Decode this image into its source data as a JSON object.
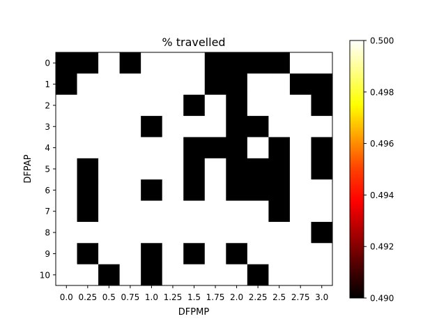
{
  "chart_data": {
    "type": "heatmap",
    "title": "% travelled",
    "xlabel": "DFPMP",
    "ylabel": "DFPAP",
    "x_categories": [
      "0.0",
      "0.25",
      "0.5",
      "0.75",
      "1.0",
      "1.25",
      "1.5",
      "1.75",
      "2.0",
      "2.25",
      "2.5",
      "2.75",
      "3.0"
    ],
    "y_categories": [
      "0",
      "1",
      "2",
      "3",
      "4",
      "5",
      "6",
      "7",
      "8",
      "9",
      "10"
    ],
    "values": [
      [
        0.49,
        0.49,
        0.5,
        0.49,
        0.5,
        0.5,
        0.5,
        0.49,
        0.49,
        0.49,
        0.49,
        0.5,
        0.5
      ],
      [
        0.49,
        0.5,
        0.5,
        0.5,
        0.5,
        0.5,
        0.5,
        0.49,
        0.49,
        0.5,
        0.5,
        0.49,
        0.49
      ],
      [
        0.5,
        0.5,
        0.5,
        0.5,
        0.5,
        0.5,
        0.49,
        0.5,
        0.49,
        0.5,
        0.5,
        0.5,
        0.49
      ],
      [
        0.5,
        0.5,
        0.5,
        0.5,
        0.49,
        0.5,
        0.5,
        0.5,
        0.49,
        0.49,
        0.5,
        0.5,
        0.5
      ],
      [
        0.5,
        0.5,
        0.5,
        0.5,
        0.5,
        0.5,
        0.49,
        0.49,
        0.49,
        0.5,
        0.49,
        0.5,
        0.49
      ],
      [
        0.5,
        0.49,
        0.5,
        0.5,
        0.5,
        0.5,
        0.49,
        0.5,
        0.49,
        0.49,
        0.49,
        0.5,
        0.49
      ],
      [
        0.5,
        0.49,
        0.5,
        0.5,
        0.49,
        0.5,
        0.49,
        0.5,
        0.49,
        0.49,
        0.49,
        0.5,
        0.5
      ],
      [
        0.5,
        0.49,
        0.5,
        0.5,
        0.5,
        0.5,
        0.5,
        0.5,
        0.5,
        0.5,
        0.49,
        0.5,
        0.5
      ],
      [
        0.5,
        0.5,
        0.5,
        0.5,
        0.5,
        0.5,
        0.5,
        0.5,
        0.5,
        0.5,
        0.5,
        0.5,
        0.49
      ],
      [
        0.5,
        0.49,
        0.5,
        0.5,
        0.49,
        0.5,
        0.49,
        0.5,
        0.49,
        0.5,
        0.5,
        0.5,
        0.5
      ],
      [
        0.5,
        0.5,
        0.49,
        0.5,
        0.49,
        0.5,
        0.5,
        0.5,
        0.5,
        0.49,
        0.5,
        0.5,
        0.5
      ]
    ],
    "colorbar": {
      "colormap": "hot",
      "range": [
        0.49,
        0.5
      ],
      "tick_labels": [
        "0.490",
        "0.492",
        "0.494",
        "0.496",
        "0.498",
        "0.500"
      ],
      "tick_values": [
        0.49,
        0.492,
        0.494,
        0.496,
        0.498,
        0.5
      ]
    },
    "colors": {
      "low": "#000000",
      "high": "#ffffff"
    },
    "grid": false
  }
}
